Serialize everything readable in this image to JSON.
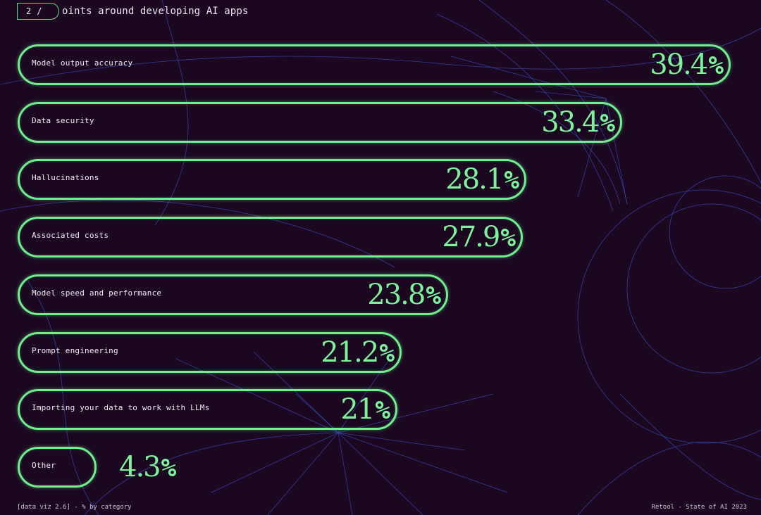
{
  "header": {
    "step": "2",
    "step_sep": "/",
    "title": "oints around developing AI apps"
  },
  "footer": {
    "left": "[data viz 2.6] - % by category",
    "right": "Retool - State of AI 2023"
  },
  "colors": {
    "background": "#1b0720",
    "accent": "#6ef08f",
    "lines": "#3b4fc4"
  },
  "chart_data": {
    "type": "bar",
    "orientation": "horizontal",
    "unit": "%",
    "xlim": [
      0,
      39.4
    ],
    "categories": [
      "Model output accuracy",
      "Data security",
      "Hallucinations",
      "Associated costs",
      "Model speed and performance",
      "Prompt engineering",
      "Importing your data to work with LLMs",
      "Other"
    ],
    "values": [
      39.4,
      33.4,
      28.1,
      27.9,
      23.8,
      21.2,
      21,
      4.3
    ],
    "value_labels": [
      "39.4",
      "33.4",
      "28.1",
      "27.9",
      "23.8",
      "21.2",
      "21",
      "4.3"
    ]
  }
}
